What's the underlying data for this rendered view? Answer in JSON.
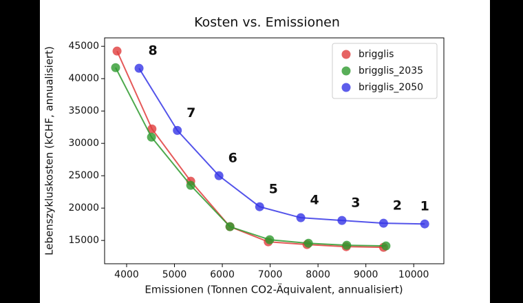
{
  "chart_data": {
    "type": "scatter",
    "title": "Kosten vs. Emissionen",
    "x_label": "Emissionen (Tonnen CO2-Äquivalent, annualisiert)",
    "y_label": "Lebenszykluskosten (kCHF, annualisiert)",
    "xlim": [
      3540,
      10630
    ],
    "ylim": [
      11400,
      46300
    ],
    "xticks": [
      4000,
      5000,
      6000,
      7000,
      8000,
      9000,
      10000
    ],
    "yticks": [
      15000,
      20000,
      25000,
      30000,
      35000,
      40000,
      45000
    ],
    "grid": false,
    "legend": "upper right",
    "series": [
      {
        "name": "brigglis",
        "color": "#e03c3c",
        "x": [
          3800,
          4530,
          5340,
          6160,
          6960,
          7770,
          8590,
          9370
        ],
        "values": [
          44260,
          32230,
          24150,
          17130,
          14790,
          14360,
          14040,
          13940
        ]
      },
      {
        "name": "brigglis_2035",
        "color": "#2e9a2e",
        "x": [
          3770,
          4520,
          5340,
          6160,
          6990,
          7800,
          8600,
          9420
        ],
        "values": [
          41700,
          30960,
          23510,
          17130,
          15110,
          14570,
          14260,
          14150
        ]
      },
      {
        "name": "brigglis_2050",
        "color": "#3535e6",
        "x": [
          4260,
          5060,
          5930,
          6780,
          7640,
          8500,
          9370,
          10230
        ],
        "values": [
          41600,
          32000,
          25000,
          20210,
          18510,
          18090,
          17660,
          17550
        ],
        "point_labels": [
          "8",
          "7",
          "6",
          "5",
          "4",
          "3",
          "2",
          "1"
        ]
      }
    ]
  }
}
